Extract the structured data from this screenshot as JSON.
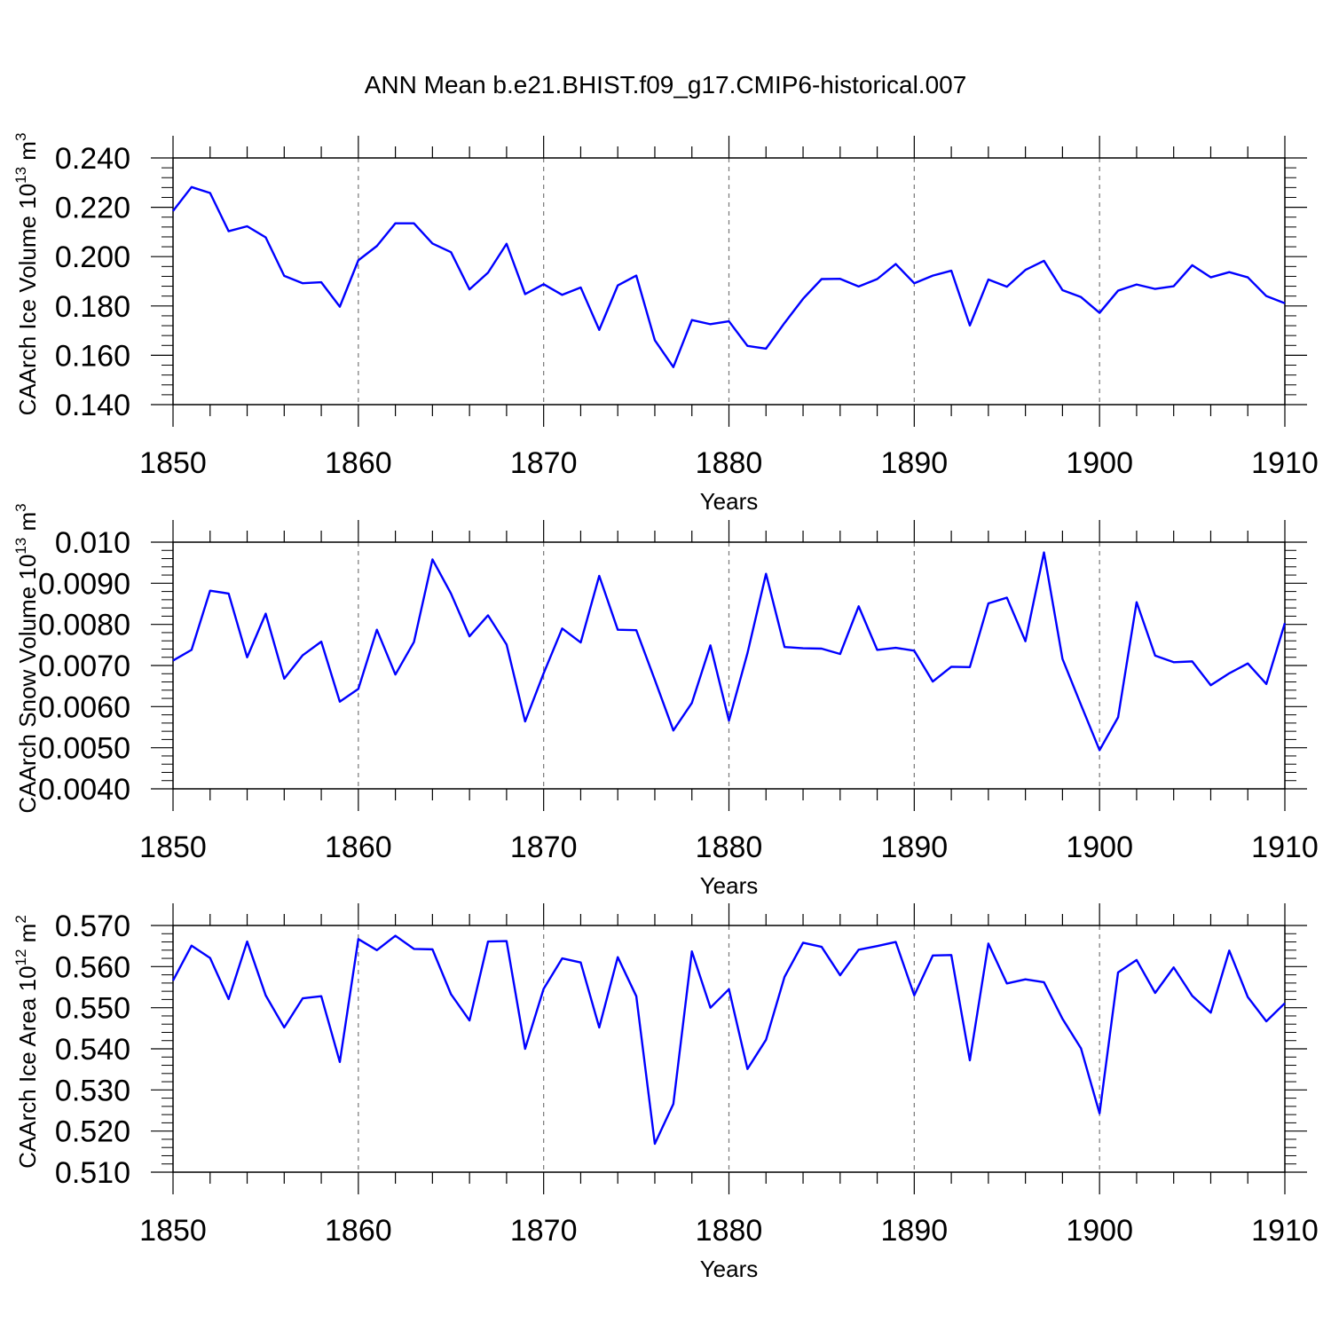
{
  "chart_data": {
    "title": "ANN Mean b.e21.BHIST.f09_g17.CMIP6-historical.007",
    "panels": [
      {
        "type": "line",
        "ylabel": "CAArch Ice Volume",
        "unit_base": "10",
        "unit_exp": "13",
        "unit_tail": " m",
        "unit_tail_exp": "3",
        "xlabel": "Years",
        "xlim": [
          1850,
          1910
        ],
        "ylim": [
          0.14,
          0.24
        ],
        "xticks": [
          "1850",
          "1860",
          "1870",
          "1880",
          "1890",
          "1900",
          "1910"
        ],
        "yticks": [
          "0.140",
          "0.160",
          "0.180",
          "0.200",
          "0.220",
          "0.240"
        ],
        "ytick_values": [
          0.14,
          0.16,
          0.18,
          0.2,
          0.22,
          0.24
        ],
        "line_color": "#0000ff",
        "years_start": 1850,
        "values": [
          0.2185,
          0.2282,
          0.2258,
          0.2103,
          0.2123,
          0.2078,
          0.1922,
          0.1892,
          0.1896,
          0.1797,
          0.1985,
          0.2043,
          0.2135,
          0.2135,
          0.2053,
          0.2018,
          0.1867,
          0.1935,
          0.2052,
          0.1848,
          0.1888,
          0.1845,
          0.1875,
          0.1703,
          0.1883,
          0.1923,
          0.1661,
          0.1552,
          0.1743,
          0.1726,
          0.1738,
          0.1638,
          0.1627,
          0.1731,
          0.1829,
          0.1909,
          0.191,
          0.1879,
          0.1909,
          0.197,
          0.1892,
          0.1923,
          0.1943,
          0.1721,
          0.1907,
          0.1878,
          0.1946,
          0.1983,
          0.1864,
          0.1836,
          0.1772,
          0.1862,
          0.1887,
          0.1869,
          0.188,
          0.1965,
          0.1916,
          0.1937,
          0.1916,
          0.184,
          0.1811
        ]
      },
      {
        "type": "line",
        "ylabel": "CAArch Snow Volume",
        "unit_base": "10",
        "unit_exp": "13",
        "unit_tail": " m",
        "unit_tail_exp": "3",
        "xlabel": "Years",
        "xlim": [
          1850,
          1910
        ],
        "ylim": [
          0.004,
          0.01
        ],
        "xticks": [
          "1850",
          "1860",
          "1870",
          "1880",
          "1890",
          "1900",
          "1910"
        ],
        "yticks": [
          "0.0040",
          "0.0050",
          "0.0060",
          "0.0070",
          "0.0080",
          "0.0090",
          "0.010"
        ],
        "ytick_values": [
          0.004,
          0.005,
          0.006,
          0.007,
          0.008,
          0.009,
          0.01
        ],
        "line_color": "#0000ff",
        "years_start": 1850,
        "values": [
          0.00712,
          0.00738,
          0.00882,
          0.00875,
          0.0072,
          0.00826,
          0.00668,
          0.00725,
          0.00758,
          0.00612,
          0.00643,
          0.00787,
          0.00678,
          0.00757,
          0.00958,
          0.00875,
          0.00771,
          0.00822,
          0.00751,
          0.00564,
          0.00681,
          0.0079,
          0.00756,
          0.00918,
          0.00787,
          0.00786,
          0.00665,
          0.00542,
          0.00609,
          0.00749,
          0.00566,
          0.0073,
          0.00923,
          0.00745,
          0.00742,
          0.00741,
          0.00728,
          0.00844,
          0.00738,
          0.00743,
          0.00736,
          0.00661,
          0.00697,
          0.00696,
          0.00851,
          0.00865,
          0.00759,
          0.00975,
          0.00716,
          0.00604,
          0.00494,
          0.00574,
          0.00854,
          0.00724,
          0.00708,
          0.0071,
          0.00652,
          0.00681,
          0.00705,
          0.00655,
          0.00803
        ]
      },
      {
        "type": "line",
        "ylabel": "CAArch Ice Area",
        "unit_base": "10",
        "unit_exp": "12",
        "unit_tail": " m",
        "unit_tail_exp": "2",
        "xlabel": "Years",
        "xlim": [
          1850,
          1910
        ],
        "ylim": [
          0.51,
          0.57
        ],
        "xticks": [
          "1850",
          "1860",
          "1870",
          "1880",
          "1890",
          "1900",
          "1910"
        ],
        "yticks": [
          "0.510",
          "0.520",
          "0.530",
          "0.540",
          "0.550",
          "0.560",
          "0.570"
        ],
        "ytick_values": [
          0.51,
          0.52,
          0.53,
          0.54,
          0.55,
          0.56,
          0.57
        ],
        "line_color": "#0000ff",
        "years_start": 1850,
        "values": [
          0.5566,
          0.5651,
          0.5621,
          0.5521,
          0.5661,
          0.553,
          0.5452,
          0.5523,
          0.5528,
          0.5368,
          0.5667,
          0.564,
          0.5675,
          0.5643,
          0.5642,
          0.5533,
          0.5469,
          0.5661,
          0.5662,
          0.54,
          0.5546,
          0.562,
          0.561,
          0.5452,
          0.5623,
          0.5528,
          0.5169,
          0.5266,
          0.5637,
          0.55,
          0.5545,
          0.5351,
          0.5422,
          0.5575,
          0.5658,
          0.5648,
          0.5579,
          0.5641,
          0.565,
          0.566,
          0.553,
          0.5627,
          0.5628,
          0.5372,
          0.5656,
          0.5559,
          0.5569,
          0.5562,
          0.5473,
          0.5401,
          0.5243,
          0.5586,
          0.5616,
          0.5536,
          0.5598,
          0.5529,
          0.5488,
          0.5639,
          0.5526,
          0.5467,
          0.5511
        ]
      }
    ]
  }
}
